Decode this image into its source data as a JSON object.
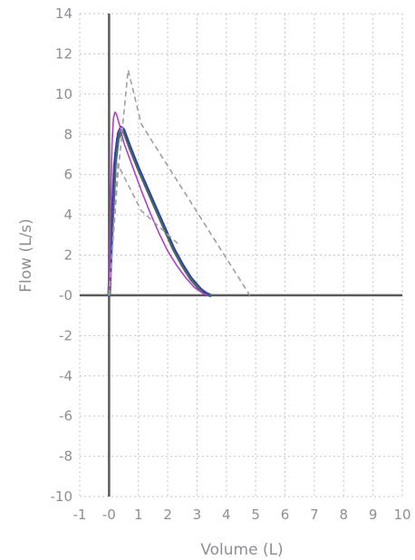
{
  "chart_data": {
    "type": "line",
    "title": "",
    "xlabel": "Volume (L)",
    "ylabel": "Flow (L/s)",
    "xlim": [
      -1,
      10
    ],
    "ylim": [
      -10,
      14
    ],
    "x_ticks": [
      -1,
      0,
      1,
      2,
      3,
      4,
      5,
      6,
      7,
      8,
      9,
      10
    ],
    "x_tick_labels": [
      "-1",
      "-0",
      "1",
      "2",
      "3",
      "4",
      "5",
      "6",
      "7",
      "8",
      "9",
      "10"
    ],
    "y_ticks": [
      14,
      12,
      10,
      8,
      6,
      4,
      2,
      0,
      -2,
      -4,
      -6,
      -8,
      -10
    ],
    "y_tick_labels": [
      "14",
      "12",
      "10",
      "8",
      "6",
      "4",
      "2",
      "-0",
      "-2",
      "-4",
      "-6",
      "-8",
      "-10"
    ],
    "grid": true,
    "legend": "none",
    "series": [
      {
        "color": "#4a6a64",
        "width": 4,
        "style": "solid",
        "x": [
          0,
          0.1,
          0.2,
          0.3,
          0.4,
          0.5,
          0.7,
          1.0,
          1.3,
          1.6,
          1.9,
          2.2,
          2.5,
          2.8,
          3.1,
          3.3,
          3.45
        ],
        "y": [
          0,
          3.5,
          6.5,
          7.8,
          8.1,
          8.2,
          7.4,
          6.3,
          5.3,
          4.3,
          3.3,
          2.3,
          1.5,
          0.8,
          0.3,
          0.1,
          0
        ]
      },
      {
        "color": "#2f3fb0",
        "width": 1.6,
        "style": "solid",
        "x": [
          0,
          0.1,
          0.2,
          0.3,
          0.4,
          0.5,
          0.7,
          1.0,
          1.3,
          1.6,
          1.9,
          2.2,
          2.5,
          2.8,
          3.1,
          3.3,
          3.4
        ],
        "y": [
          0,
          4.0,
          7.0,
          8.1,
          8.4,
          8.3,
          7.5,
          6.4,
          5.4,
          4.4,
          3.4,
          2.4,
          1.6,
          0.9,
          0.4,
          0.1,
          0
        ]
      },
      {
        "color": "#b040c8",
        "width": 1.6,
        "style": "solid",
        "x": [
          0,
          0.05,
          0.1,
          0.15,
          0.2,
          0.25,
          0.35,
          0.5,
          0.8,
          1.1,
          1.4,
          1.7,
          2.0,
          2.3,
          2.6,
          2.9,
          3.2,
          3.35
        ],
        "y": [
          0,
          4.5,
          7.5,
          8.8,
          9.1,
          9.0,
          8.5,
          7.6,
          6.4,
          5.2,
          4.1,
          3.1,
          2.2,
          1.5,
          0.9,
          0.4,
          0.1,
          0
        ]
      },
      {
        "color": "#a0a0a0",
        "width": 1.6,
        "style": "dashed",
        "x": [
          0,
          0.3,
          0.65,
          1.1,
          4.8
        ],
        "y": [
          0,
          6.0,
          11.2,
          8.5,
          0
        ]
      },
      {
        "color": "#a0a0a0",
        "width": 1.6,
        "style": "dashed",
        "x": [
          0,
          0.3,
          1.1,
          2.4
        ],
        "y": [
          0,
          6.5,
          4.2,
          2.5
        ]
      }
    ]
  }
}
